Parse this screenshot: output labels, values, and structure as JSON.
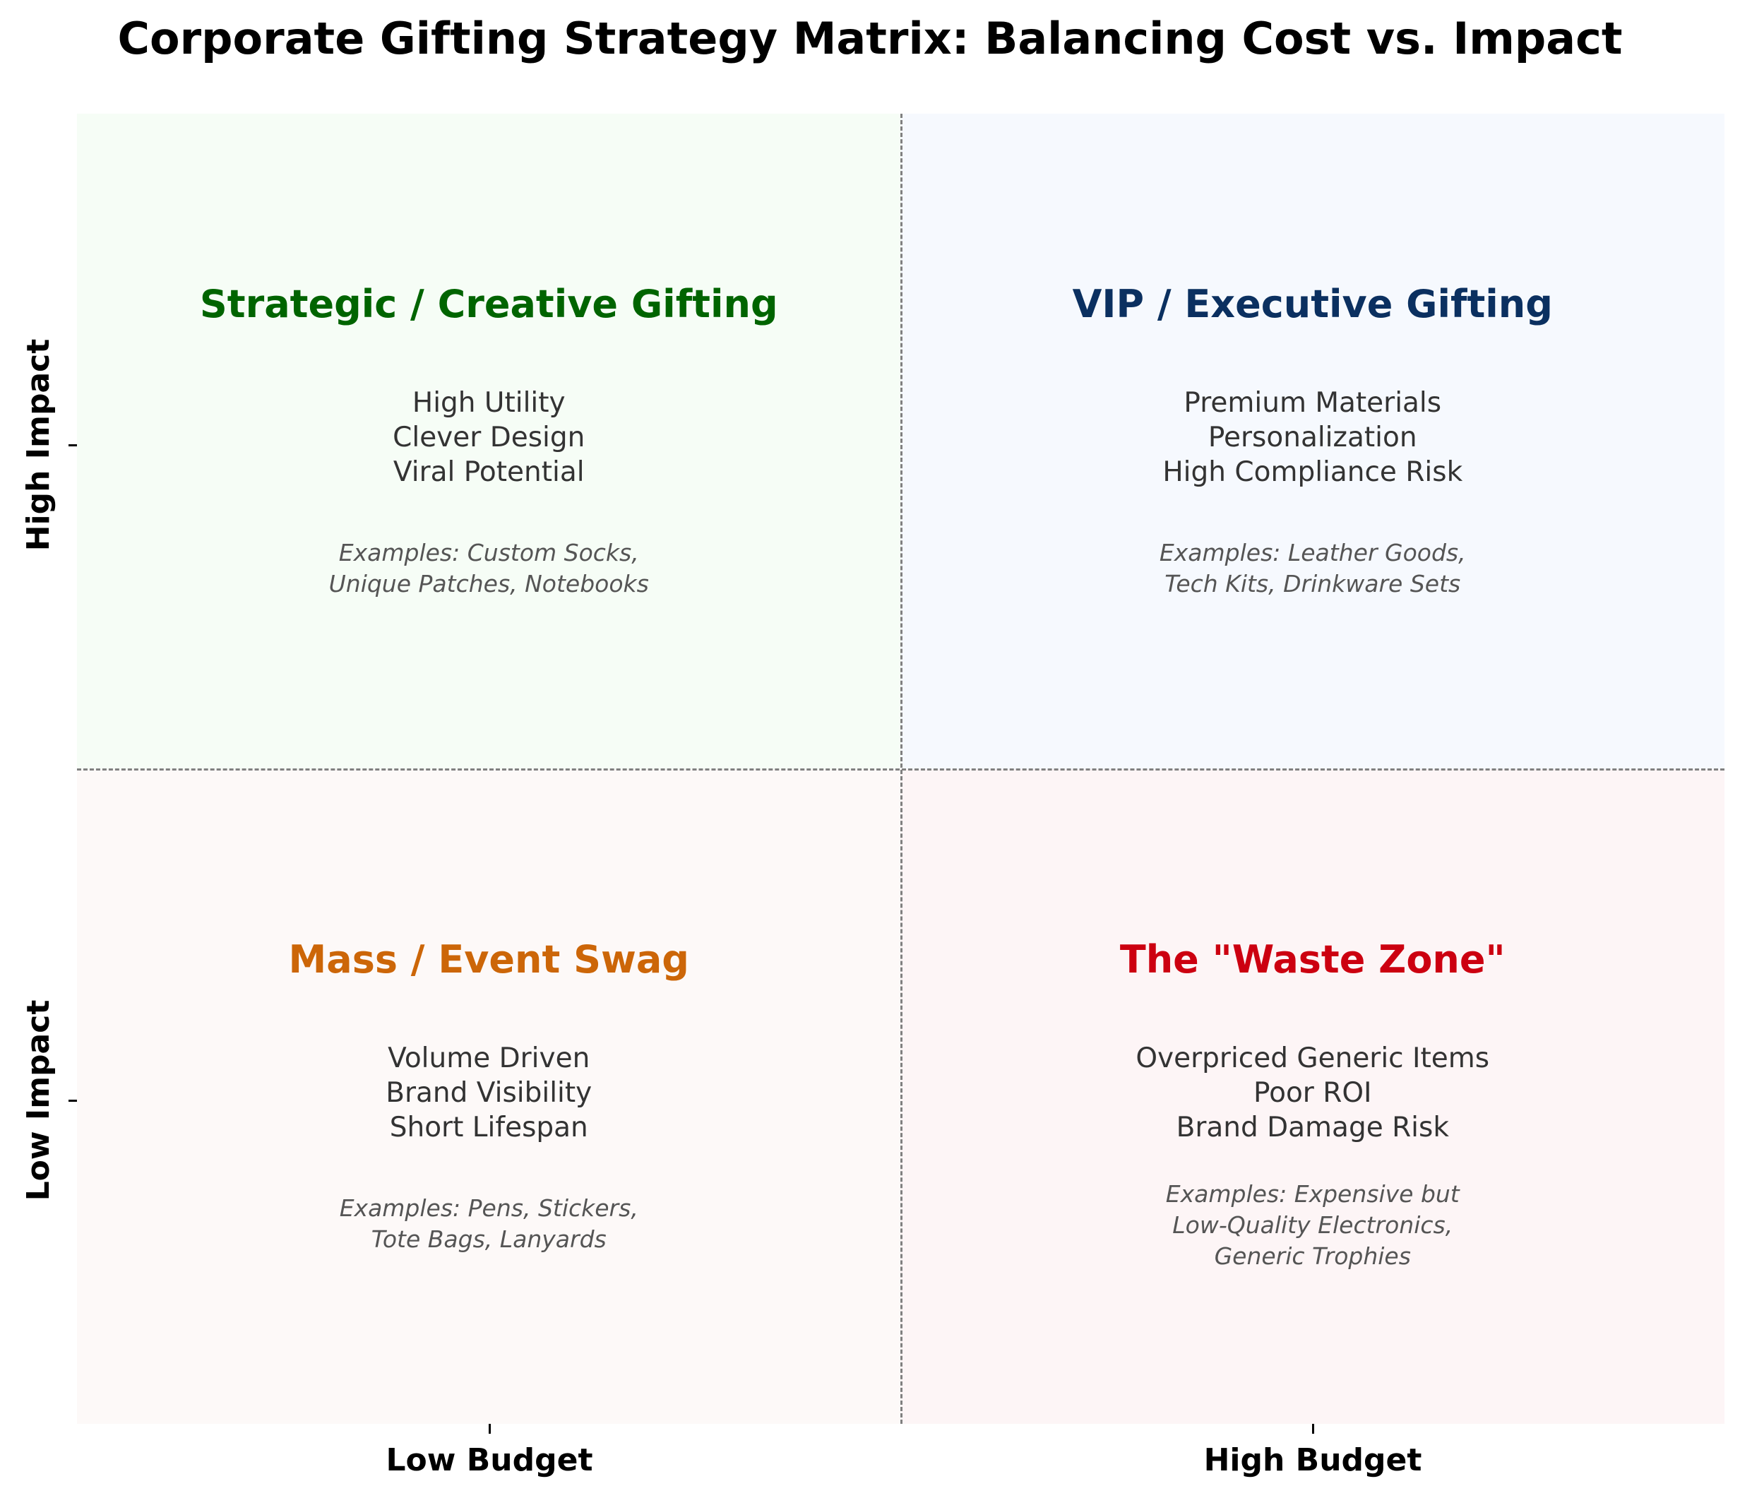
{
  "title": "Corporate Gifting Strategy Matrix: Balancing Cost vs. Impact",
  "axes": {
    "x_ticks": [
      "Low Budget",
      "High Budget"
    ],
    "y_ticks": [
      "Low Impact",
      "High Impact"
    ]
  },
  "quadrants": {
    "top_left": {
      "title": "Strategic / Creative Gifting",
      "title_color": "#006400",
      "bg_color": "#f6fdf6",
      "traits": [
        "High Utility",
        "Clever Design",
        "Viral Potential"
      ],
      "examples": [
        "Examples: Custom Socks,",
        "Unique Patches, Notebooks"
      ]
    },
    "top_right": {
      "title": "VIP / Executive Gifting",
      "title_color": "#0b3060",
      "bg_color": "#f6f9fe",
      "traits": [
        "Premium Materials",
        "Personalization",
        "High Compliance Risk"
      ],
      "examples": [
        "Examples: Leather Goods,",
        "Tech Kits, Drinkware Sets"
      ]
    },
    "bottom_left": {
      "title": "Mass / Event Swag",
      "title_color": "#cc6608",
      "bg_color": "#fdf9f8",
      "traits": [
        "Volume Driven",
        "Brand Visibility",
        "Short Lifespan"
      ],
      "examples": [
        "Examples: Pens, Stickers,",
        "Tote Bags, Lanyards"
      ]
    },
    "bottom_right": {
      "title": "The \"Waste Zone\"",
      "title_color": "#cc0010",
      "bg_color": "#fdf5f6",
      "traits": [
        "Overpriced Generic Items",
        "Poor ROI",
        "Brand Damage Risk"
      ],
      "examples": [
        "Examples: Expensive but",
        "Low-Quality Electronics,",
        "Generic Trophies"
      ]
    }
  }
}
